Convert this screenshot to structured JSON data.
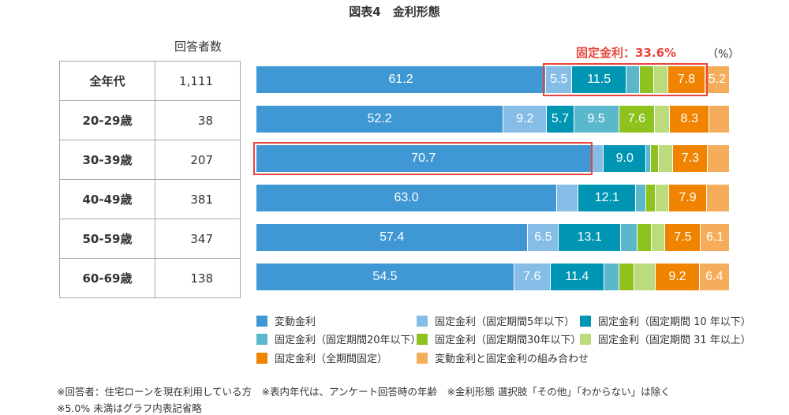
{
  "title": "図表4　金利形態",
  "count_header": "回答者数",
  "rows": [
    {
      "age": "全年代",
      "n": "1,111"
    },
    {
      "age": "20-29歳",
      "n": "38"
    },
    {
      "age": "30-39歳",
      "n": "207"
    },
    {
      "age": "40-49歳",
      "n": "381"
    },
    {
      "age": "50-59歳",
      "n": "347"
    },
    {
      "age": "60-69歳",
      "n": "138"
    }
  ],
  "fixed_total_label": "固定金利：33.6%",
  "unit": "（%）",
  "chart_data": {
    "type": "bar",
    "orientation": "horizontal-stacked-100",
    "categories": [
      "全年代",
      "20-29歳",
      "30-39歳",
      "40-49歳",
      "50-59歳",
      "60-69歳"
    ],
    "label_threshold": 5.0,
    "series": [
      {
        "name": "変動金利",
        "color": "#3f97d4",
        "values": [
          61.2,
          52.2,
          70.7,
          63.0,
          57.4,
          54.5
        ]
      },
      {
        "name": "固定金利（固定期間5年以下）",
        "color": "#85bde6",
        "values": [
          5.5,
          9.2,
          2.6,
          4.5,
          6.5,
          7.6
        ]
      },
      {
        "name": "固定金利（固定期間 10 年以下）",
        "color": "#0095b3",
        "values": [
          11.5,
          5.7,
          9.0,
          12.1,
          13.1,
          11.4
        ]
      },
      {
        "name": "固定金利（固定期間20年以下）",
        "color": "#5bb8cc",
        "values": [
          2.8,
          9.5,
          1.0,
          2.0,
          3.5,
          3.2
        ]
      },
      {
        "name": "固定金利（固定期間30年以下）",
        "color": "#8dc21f",
        "values": [
          3.0,
          7.6,
          1.7,
          2.0,
          3.0,
          3.2
        ]
      },
      {
        "name": "固定金利（固定期間 31 年以上）",
        "color": "#bcdb7c",
        "values": [
          3.0,
          3.2,
          3.0,
          2.9,
          2.9,
          4.5
        ]
      },
      {
        "name": "固定金利（全期間固定）",
        "color": "#f08300",
        "values": [
          7.8,
          8.3,
          7.3,
          7.9,
          7.5,
          9.2
        ]
      },
      {
        "name": "変動金利と固定金利の組み合わせ",
        "color": "#f5ad5c",
        "values": [
          5.2,
          4.3,
          4.6,
          4.8,
          6.1,
          6.4
        ]
      }
    ],
    "legend_placement": "bottom"
  },
  "notes": [
    "※回答者：住宅ローンを現在利用している方　※表内年代は、アンケート回答時の年齢　※金利形態 選択肢「その他」「わからない」は除く",
    "※5.0% 未満はグラフ内表記省略"
  ]
}
